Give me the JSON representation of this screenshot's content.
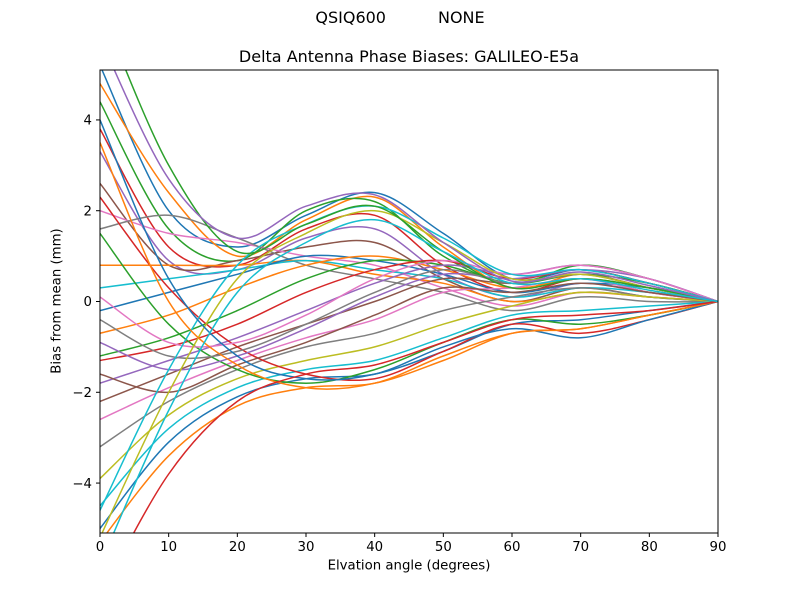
{
  "header": {
    "left": "QSIQ600",
    "right": "NONE"
  },
  "chart_data": {
    "type": "line",
    "title": "Delta Antenna Phase Biases: GALILEO-E5a",
    "xlabel": "Elvation angle (degrees)",
    "ylabel": "Bias from mean (mm)",
    "xlim": [
      0,
      90
    ],
    "ylim": [
      -5.1,
      5.1
    ],
    "xticks": [
      0,
      10,
      20,
      30,
      40,
      50,
      60,
      70,
      80,
      90
    ],
    "yticks": [
      -4,
      -2,
      0,
      2,
      4
    ],
    "grid": false,
    "legend": null,
    "x": [
      0,
      10,
      20,
      30,
      40,
      50,
      60,
      70,
      80,
      90
    ],
    "series": [
      {
        "color": "#1f77b4",
        "values": [
          5.2,
          2.0,
          1.2,
          1.9,
          2.4,
          1.5,
          0.5,
          0.7,
          0.4,
          0
        ]
      },
      {
        "color": "#ff7f0e",
        "values": [
          4.8,
          2.4,
          1.0,
          1.8,
          2.3,
          1.2,
          0.3,
          0.6,
          0.3,
          0
        ]
      },
      {
        "color": "#2ca02c",
        "values": [
          4.4,
          1.6,
          0.9,
          2.0,
          2.2,
          1.0,
          0.4,
          0.8,
          0.5,
          0
        ]
      },
      {
        "color": "#d62728",
        "values": [
          3.8,
          1.2,
          0.8,
          1.6,
          1.9,
          0.8,
          0.2,
          0.5,
          0.2,
          0
        ]
      },
      {
        "color": "#9467bd",
        "values": [
          3.3,
          0.9,
          0.7,
          1.4,
          1.6,
          0.6,
          0.1,
          0.4,
          0.2,
          0
        ]
      },
      {
        "color": "#8c564b",
        "values": [
          2.6,
          0.8,
          0.9,
          1.2,
          1.3,
          0.5,
          0.0,
          0.3,
          0.1,
          0
        ]
      },
      {
        "color": "#e377c2",
        "values": [
          2.0,
          1.5,
          1.3,
          1.0,
          0.8,
          0.3,
          -0.1,
          0.2,
          0.1,
          0
        ]
      },
      {
        "color": "#7f7f7f",
        "values": [
          1.6,
          1.9,
          1.4,
          0.8,
          0.5,
          0.2,
          -0.2,
          0.1,
          0.0,
          0
        ]
      },
      {
        "color": "#ff7f0e",
        "values": [
          0.8,
          0.8,
          0.8,
          0.9,
          0.6,
          0.4,
          0.0,
          0.2,
          0.1,
          0
        ]
      },
      {
        "color": "#17becf",
        "values": [
          0.3,
          0.5,
          0.7,
          0.9,
          0.7,
          0.5,
          0.1,
          0.3,
          0.2,
          0
        ]
      },
      {
        "color": "#1f77b4",
        "values": [
          -0.2,
          0.2,
          0.6,
          1.0,
          0.9,
          0.6,
          0.2,
          0.4,
          0.3,
          0
        ]
      },
      {
        "color": "#ff7f0e",
        "values": [
          -0.7,
          -0.3,
          0.3,
          0.8,
          1.0,
          0.7,
          0.3,
          0.5,
          0.3,
          0
        ]
      },
      {
        "color": "#2ca02c",
        "values": [
          -1.2,
          -0.8,
          -0.2,
          0.5,
          0.9,
          0.8,
          0.4,
          0.6,
          0.4,
          0
        ]
      },
      {
        "color": "#d62728",
        "values": [
          -1.3,
          -1.0,
          -0.5,
          0.2,
          0.7,
          0.9,
          0.5,
          0.7,
          0.4,
          0
        ]
      },
      {
        "color": "#9467bd",
        "values": [
          -1.8,
          -1.3,
          -0.8,
          -0.2,
          0.4,
          0.8,
          0.6,
          0.8,
          0.5,
          0
        ]
      },
      {
        "color": "#8c564b",
        "values": [
          -2.2,
          -1.6,
          -1.0,
          -0.5,
          0.0,
          0.5,
          0.4,
          0.6,
          0.3,
          0
        ]
      },
      {
        "color": "#e377c2",
        "values": [
          -2.6,
          -1.9,
          -1.3,
          -0.8,
          -0.4,
          0.2,
          0.3,
          0.5,
          0.2,
          0
        ]
      },
      {
        "color": "#7f7f7f",
        "values": [
          -3.2,
          -2.2,
          -1.5,
          -1.0,
          -0.7,
          -0.2,
          0.1,
          0.3,
          0.1,
          0
        ]
      },
      {
        "color": "#bcbd22",
        "values": [
          -3.9,
          -2.5,
          -1.7,
          -1.3,
          -1.0,
          -0.5,
          -0.1,
          0.2,
          0.1,
          0
        ]
      },
      {
        "color": "#17becf",
        "values": [
          -4.5,
          -2.8,
          -1.9,
          -1.5,
          -1.3,
          -0.8,
          -0.3,
          -0.2,
          -0.1,
          0
        ]
      },
      {
        "color": "#1f77b4",
        "values": [
          -5.0,
          -3.1,
          -2.1,
          -1.7,
          -1.6,
          -1.1,
          -0.5,
          -0.4,
          -0.2,
          0
        ]
      },
      {
        "color": "#ff7f0e",
        "values": [
          -5.3,
          -3.4,
          -2.3,
          -1.9,
          -1.8,
          -1.3,
          -0.7,
          -0.6,
          -0.3,
          0
        ]
      },
      {
        "color": "#2ca02c",
        "values": [
          1.5,
          -0.5,
          -1.5,
          -1.8,
          -1.5,
          -0.9,
          -0.4,
          -0.5,
          -0.3,
          0
        ]
      },
      {
        "color": "#d62728",
        "values": [
          2.3,
          0.3,
          -1.0,
          -1.6,
          -1.7,
          -1.1,
          -0.5,
          -0.7,
          -0.4,
          0
        ]
      },
      {
        "color": "#9467bd",
        "values": [
          -0.9,
          -1.5,
          -1.2,
          -0.6,
          0.1,
          0.6,
          0.5,
          0.7,
          0.5,
          0
        ]
      },
      {
        "color": "#8c564b",
        "values": [
          -1.6,
          -2.0,
          -1.4,
          -0.9,
          -0.3,
          0.3,
          0.2,
          0.4,
          0.2,
          0
        ]
      },
      {
        "color": "#e377c2",
        "values": [
          0.1,
          -0.9,
          -0.9,
          -0.3,
          0.5,
          0.9,
          0.6,
          0.8,
          0.5,
          0
        ]
      },
      {
        "color": "#7f7f7f",
        "values": [
          -0.4,
          -1.2,
          -1.1,
          -0.5,
          0.2,
          0.7,
          0.4,
          0.6,
          0.3,
          0
        ]
      },
      {
        "color": "#bcbd22",
        "values": [
          -5.2,
          -2.0,
          0.5,
          1.5,
          2.0,
          1.3,
          0.5,
          0.6,
          0.3,
          0
        ]
      },
      {
        "color": "#17becf",
        "values": [
          -4.6,
          -1.5,
          0.8,
          1.7,
          2.1,
          1.4,
          0.6,
          0.7,
          0.4,
          0
        ]
      },
      {
        "color": "#1f77b4",
        "values": [
          4.0,
          0.5,
          -1.2,
          -1.7,
          -1.6,
          -1.0,
          -0.6,
          -0.8,
          -0.4,
          0
        ]
      },
      {
        "color": "#ff7f0e",
        "values": [
          3.5,
          0.0,
          -1.4,
          -1.9,
          -1.8,
          -1.2,
          -0.7,
          -0.6,
          -0.3,
          0
        ]
      },
      {
        "color": "#2ca02c",
        "values": [
          6.5,
          3.0,
          1.1,
          1.7,
          2.1,
          1.1,
          0.3,
          0.5,
          0.3,
          0
        ]
      },
      {
        "color": "#d62728",
        "values": [
          -6.5,
          -3.8,
          -2.2,
          -1.6,
          -1.4,
          -0.9,
          -0.4,
          -0.3,
          -0.2,
          0
        ]
      },
      {
        "color": "#9467bd",
        "values": [
          5.8,
          2.7,
          1.4,
          2.1,
          2.35,
          1.3,
          0.45,
          0.65,
          0.35,
          0
        ]
      },
      {
        "color": "#17becf",
        "values": [
          -5.8,
          -2.4,
          0.2,
          1.3,
          1.8,
          1.1,
          0.4,
          0.5,
          0.25,
          0
        ]
      }
    ]
  }
}
